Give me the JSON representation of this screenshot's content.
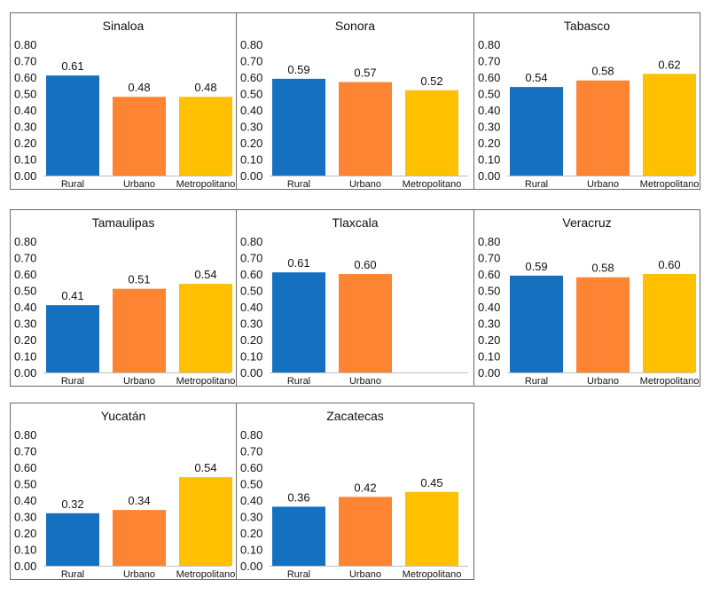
{
  "colors": {
    "Rural": "#1570c0",
    "Urbano": "#fc8432",
    "Metropolitano": "#ffc000"
  },
  "chart_data": [
    {
      "type": "bar",
      "title": "Sinaloa",
      "categories": [
        "Rural",
        "Urbano",
        "Metropolitano"
      ],
      "values": [
        0.61,
        0.48,
        0.48
      ],
      "value_labels": [
        "0.61",
        "0.48",
        "0.48"
      ],
      "yticks": [
        "0.00",
        "0.10",
        "0.20",
        "0.30",
        "0.40",
        "0.50",
        "0.60",
        "0.70",
        "0.80"
      ],
      "ylim": [
        0,
        0.8
      ]
    },
    {
      "type": "bar",
      "title": "Sonora",
      "categories": [
        "Rural",
        "Urbano",
        "Metropolitano"
      ],
      "values": [
        0.59,
        0.57,
        0.52
      ],
      "value_labels": [
        "0.59",
        "0.57",
        "0.52"
      ],
      "yticks": [
        "0.00",
        "0.10",
        "0.20",
        "0.30",
        "0.40",
        "0.50",
        "0.60",
        "0.70",
        "0.80"
      ],
      "ylim": [
        0,
        0.8
      ]
    },
    {
      "type": "bar",
      "title": "Tabasco",
      "categories": [
        "Rural",
        "Urbano",
        "Metropolitano"
      ],
      "values": [
        0.54,
        0.58,
        0.62
      ],
      "value_labels": [
        "0.54",
        "0.58",
        "0.62"
      ],
      "yticks": [
        "0.00",
        "0.10",
        "0.20",
        "0.30",
        "0.40",
        "0.50",
        "0.60",
        "0.70",
        "0.80"
      ],
      "ylim": [
        0,
        0.8
      ]
    },
    {
      "type": "bar",
      "title": "Tamaulipas",
      "categories": [
        "Rural",
        "Urbano",
        "Metropolitano"
      ],
      "values": [
        0.41,
        0.51,
        0.54
      ],
      "value_labels": [
        "0.41",
        "0.51",
        "0.54"
      ],
      "yticks": [
        "0.00",
        "0.10",
        "0.20",
        "0.30",
        "0.40",
        "0.50",
        "0.60",
        "0.70",
        "0.80"
      ],
      "ylim": [
        0,
        0.8
      ]
    },
    {
      "type": "bar",
      "title": "Tlaxcala",
      "categories": [
        "Rural",
        "Urbano"
      ],
      "values": [
        0.61,
        0.6
      ],
      "value_labels": [
        "0.61",
        "0.60"
      ],
      "yticks": [
        "0.00",
        "0.10",
        "0.20",
        "0.30",
        "0.40",
        "0.50",
        "0.60",
        "0.70",
        "0.80"
      ],
      "ylim": [
        0,
        0.8
      ]
    },
    {
      "type": "bar",
      "title": "Veracruz",
      "categories": [
        "Rural",
        "Urbano",
        "Metropolitano"
      ],
      "values": [
        0.59,
        0.58,
        0.6
      ],
      "value_labels": [
        "0.59",
        "0.58",
        "0.60"
      ],
      "yticks": [
        "0.00",
        "0.10",
        "0.20",
        "0.30",
        "0.40",
        "0.50",
        "0.60",
        "0.70",
        "0.80"
      ],
      "ylim": [
        0,
        0.8
      ]
    },
    {
      "type": "bar",
      "title": "Yucatán",
      "categories": [
        "Rural",
        "Urbano",
        "Metropolitano"
      ],
      "values": [
        0.32,
        0.34,
        0.54
      ],
      "value_labels": [
        "0.32",
        "0.34",
        "0.54"
      ],
      "yticks": [
        "0.00",
        "0.10",
        "0.20",
        "0.30",
        "0.40",
        "0.50",
        "0.60",
        "0.70",
        "0.80"
      ],
      "ylim": [
        0,
        0.8
      ]
    },
    {
      "type": "bar",
      "title": "Zacatecas",
      "categories": [
        "Rural",
        "Urbano",
        "Metropolitano"
      ],
      "values": [
        0.36,
        0.42,
        0.45
      ],
      "value_labels": [
        "0.36",
        "0.42",
        "0.45"
      ],
      "yticks": [
        "0.00",
        "0.10",
        "0.20",
        "0.30",
        "0.40",
        "0.50",
        "0.60",
        "0.70",
        "0.80"
      ],
      "ylim": [
        0,
        0.8
      ]
    }
  ]
}
